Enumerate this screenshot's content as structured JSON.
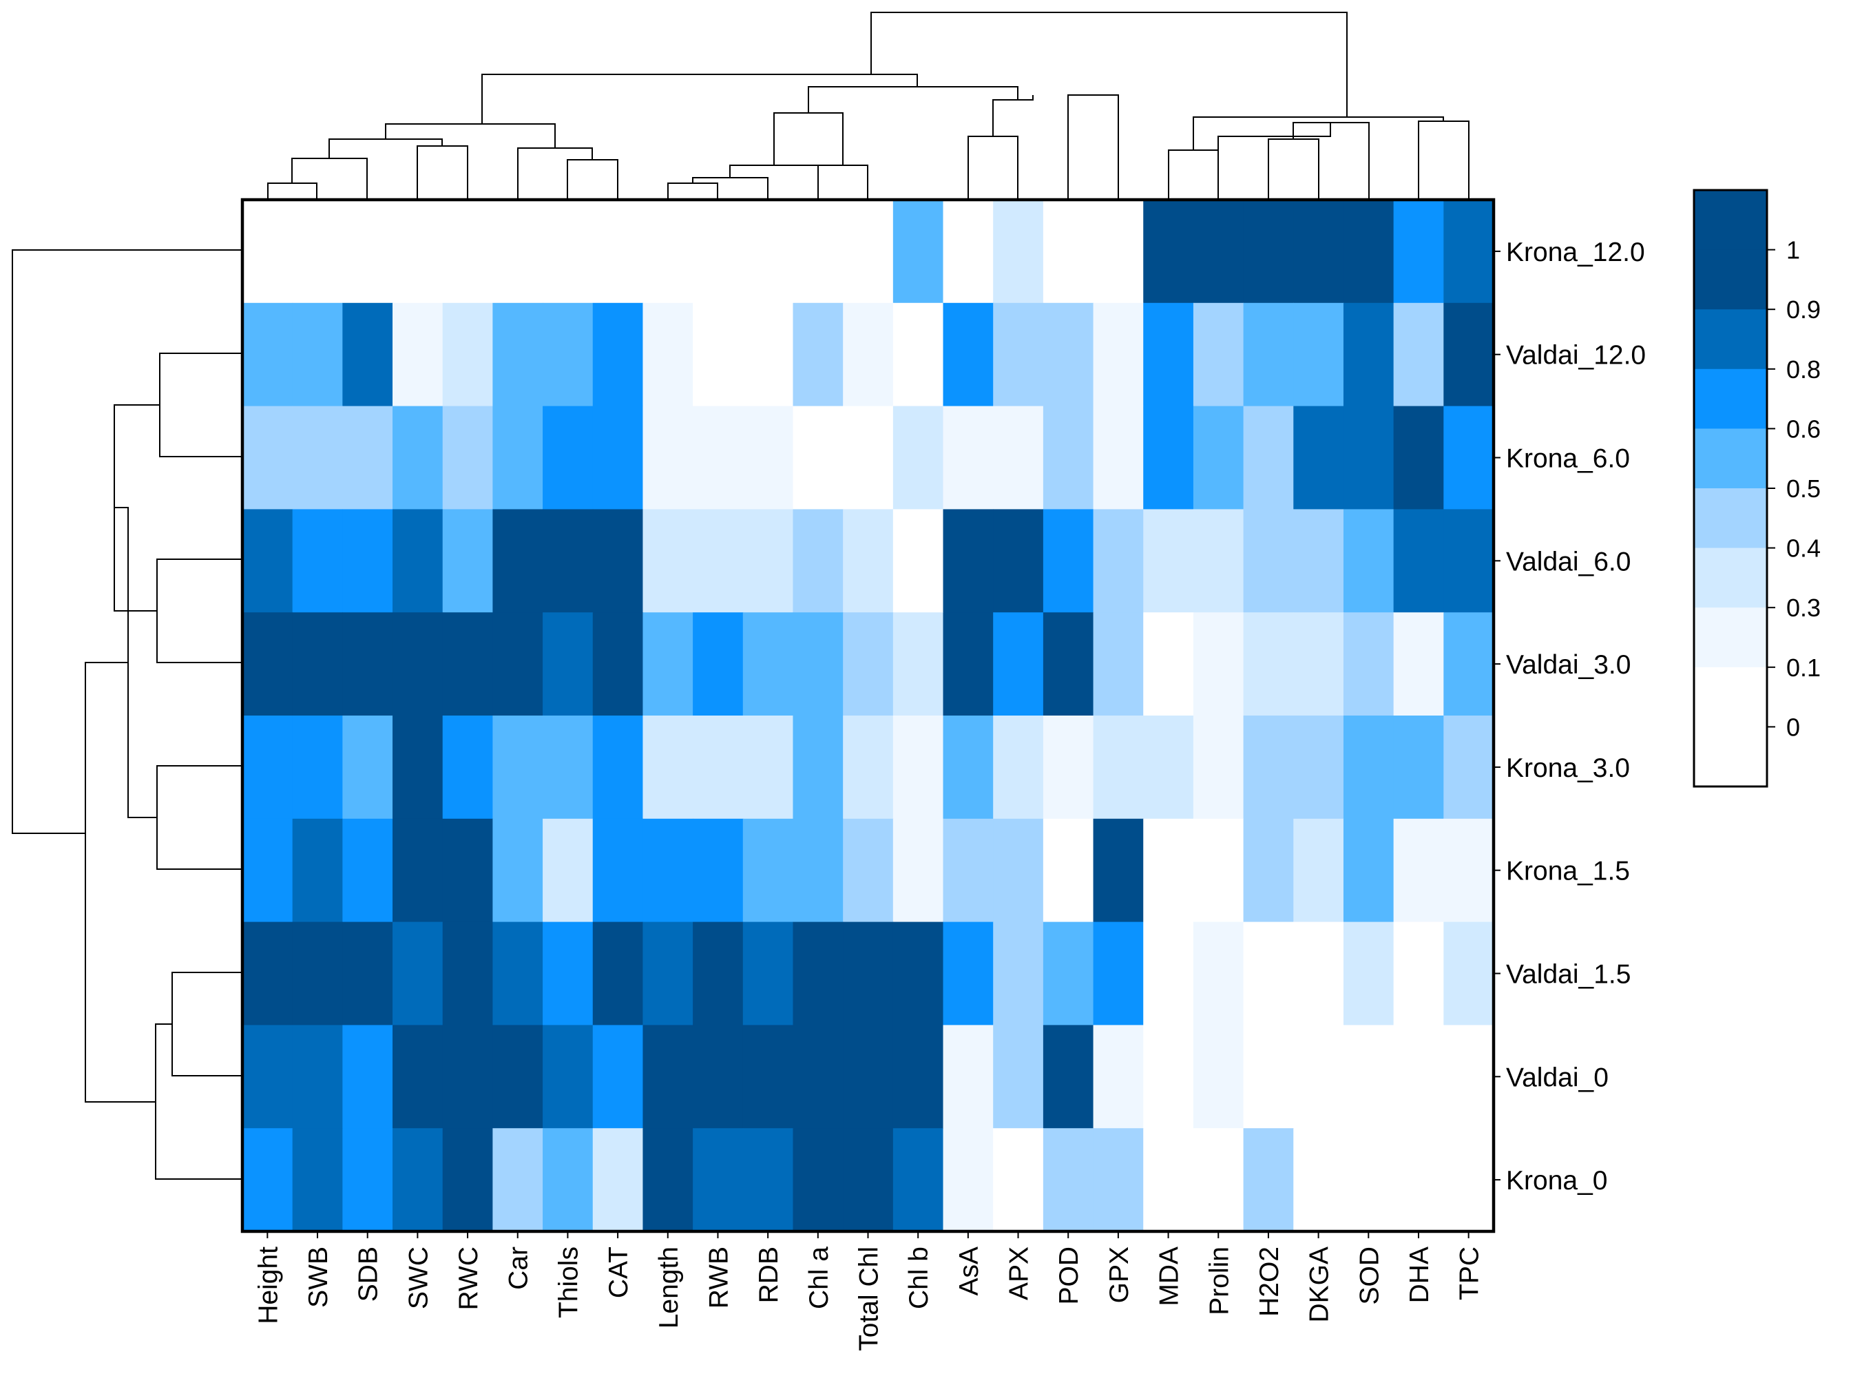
{
  "chart_data": {
    "type": "heatmap",
    "title": "",
    "columns": [
      "Height",
      "SWB",
      "SDB",
      "SWC",
      "RWC",
      "Car",
      "Thiols",
      "CAT",
      "Length",
      "RWB",
      "RDB",
      "Chl a",
      "Total Chl",
      "Chl b",
      "AsA",
      "APX",
      "POD",
      "GPX",
      "MDA",
      "Prolin",
      "H2O2",
      "DKGA",
      "SOD",
      "DHA",
      "TPC"
    ],
    "rows": [
      "Krona_12.0",
      "Valdai_12.0",
      "Krona_6.0",
      "Valdai_6.0",
      "Valdai_3.0",
      "Krona_3.0",
      "Krona_1.5",
      "Valdai_1.5",
      "Valdai_0",
      "Krona_0"
    ],
    "values": [
      [
        0,
        0,
        0,
        0,
        0,
        0,
        0,
        0,
        0,
        0,
        0,
        0,
        0,
        0.55,
        0,
        0.35,
        0,
        0,
        1,
        1,
        1,
        1,
        1,
        0.7,
        0.85
      ],
      [
        0.55,
        0.55,
        0.85,
        0.2,
        0.35,
        0.55,
        0.55,
        0.7,
        0.2,
        0,
        0,
        0.45,
        0.2,
        0,
        0.7,
        0.45,
        0.45,
        0.2,
        0.7,
        0.45,
        0.55,
        0.55,
        0.85,
        0.45,
        1
      ],
      [
        0.45,
        0.45,
        0.45,
        0.55,
        0.45,
        0.55,
        0.7,
        0.7,
        0.2,
        0.2,
        0.2,
        0,
        0,
        0.35,
        0.2,
        0.2,
        0.45,
        0.2,
        0.7,
        0.55,
        0.45,
        0.85,
        0.85,
        1,
        0.7
      ],
      [
        0.85,
        0.7,
        0.7,
        0.85,
        0.55,
        1,
        1,
        1,
        0.35,
        0.35,
        0.35,
        0.45,
        0.35,
        0,
        1,
        1,
        0.7,
        0.45,
        0.35,
        0.35,
        0.45,
        0.45,
        0.55,
        0.85,
        0.85
      ],
      [
        1,
        1,
        1,
        1,
        1,
        1,
        0.85,
        1,
        0.55,
        0.7,
        0.55,
        0.55,
        0.45,
        0.35,
        1,
        0.7,
        1,
        0.45,
        0,
        0.2,
        0.35,
        0.35,
        0.45,
        0.2,
        0.55
      ],
      [
        0.7,
        0.7,
        0.55,
        1,
        0.7,
        0.55,
        0.55,
        0.7,
        0.35,
        0.35,
        0.35,
        0.55,
        0.35,
        0.2,
        0.55,
        0.35,
        0.2,
        0.35,
        0.35,
        0.2,
        0.45,
        0.45,
        0.55,
        0.55,
        0.45
      ],
      [
        0.7,
        0.85,
        0.7,
        1,
        1,
        0.55,
        0.35,
        0.7,
        0.7,
        0.7,
        0.55,
        0.55,
        0.45,
        0.2,
        0.45,
        0.45,
        0,
        1,
        0,
        0,
        0.45,
        0.35,
        0.55,
        0.2,
        0.2
      ],
      [
        1,
        1,
        1,
        0.85,
        1,
        0.85,
        0.7,
        1,
        0.85,
        1,
        0.85,
        1,
        1,
        1,
        0.7,
        0.45,
        0.55,
        0.7,
        0,
        0.2,
        0,
        0,
        0.35,
        0,
        0.35
      ],
      [
        0.85,
        0.85,
        0.7,
        1,
        1,
        1,
        0.85,
        0.7,
        1,
        1,
        1,
        1,
        1,
        1,
        0.2,
        0.45,
        1,
        0.2,
        0,
        0.2,
        0,
        0,
        0,
        0,
        0
      ],
      [
        0.7,
        0.85,
        0.7,
        0.85,
        1,
        0.45,
        0.55,
        0.35,
        1,
        0.85,
        0.85,
        1,
        1,
        0.85,
        0.2,
        0,
        0.45,
        0.45,
        0,
        0,
        0.45,
        0,
        0,
        0,
        0
      ]
    ],
    "legend": {
      "position": "right",
      "tick_labels": [
        "1",
        "0.9",
        "0.8",
        "0.6",
        "0.5",
        "0.4",
        "0.3",
        "0.1",
        "0"
      ],
      "swatches": [
        {
          "value": 1,
          "color": "#004d8b"
        },
        {
          "value": 1,
          "color": "#004d8b"
        },
        {
          "value": 0.85,
          "color": "#006bba"
        },
        {
          "value": 0.7,
          "color": "#0b93ff"
        },
        {
          "value": 0.55,
          "color": "#55b8ff"
        },
        {
          "value": 0.45,
          "color": "#a3d4ff"
        },
        {
          "value": 0.35,
          "color": "#d1eaff"
        },
        {
          "value": 0.2,
          "color": "#eff7ff"
        },
        {
          "value": 0,
          "color": "#ffffff"
        },
        {
          "value": 0,
          "color": "#ffffff"
        }
      ]
    },
    "row_dendrogram": "(Krona_12.0,((((Valdai_12.0,Krona_6.0),(Valdai_6.0,Valdai_3.0)),(Krona_3.0,Krona_1.5)),((Valdai_1.5,Valdai_0),Krona_0)))",
    "column_dendrogram": "((((((Height,SWB),SDB),(SWC,RWC)),((Car,(Thiols,CAT)))),(((Length,RWB),RDB),Chl a),(Total Chl,Chl b)),((AsA,APX),(POD,GPX))),((MDA,(Prolin,(H2O2,DKGA),SOD)),(DHA,TPC)))"
  }
}
